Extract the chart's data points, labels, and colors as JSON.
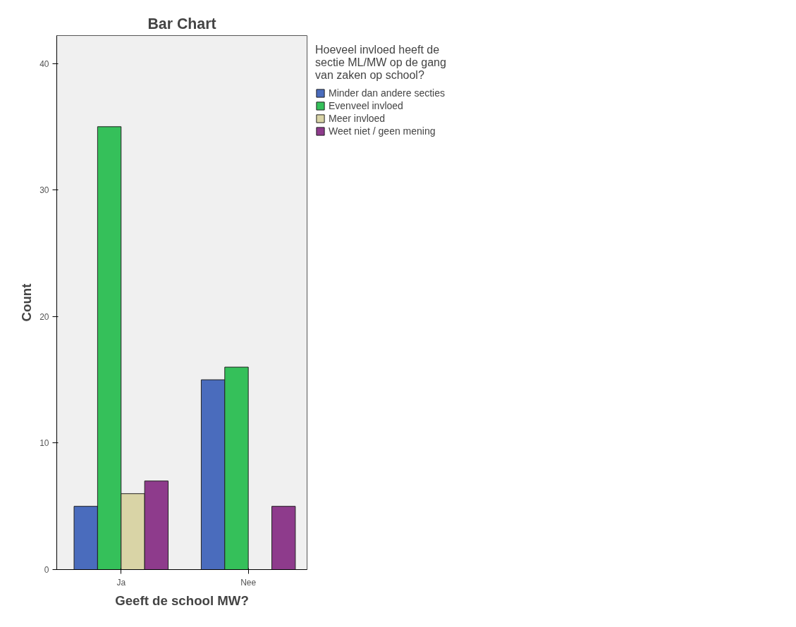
{
  "chart_data": {
    "type": "bar",
    "title": "Bar Chart",
    "xlabel": "Geeft de school MW?",
    "ylabel": "Count",
    "legend_title": "Hoeveel invloed heeft de sectie ML/MW op de gang van zaken op school?",
    "categories": [
      "Ja",
      "Nee"
    ],
    "series": [
      {
        "name": "Minder dan andere secties",
        "color": "#4a6cbd",
        "values": [
          5,
          15
        ]
      },
      {
        "name": "Evenveel invloed",
        "color": "#35c05a",
        "values": [
          35,
          16
        ]
      },
      {
        "name": "Meer invloed",
        "color": "#d9d4a6",
        "values": [
          6,
          null
        ]
      },
      {
        "name": "Weet niet / geen mening",
        "color": "#8e3b8c",
        "values": [
          7,
          5
        ]
      }
    ],
    "ylim": [
      0,
      42.2
    ],
    "yticks": [
      0,
      10,
      20,
      30,
      40
    ],
    "grid": false,
    "legend": "top right"
  }
}
